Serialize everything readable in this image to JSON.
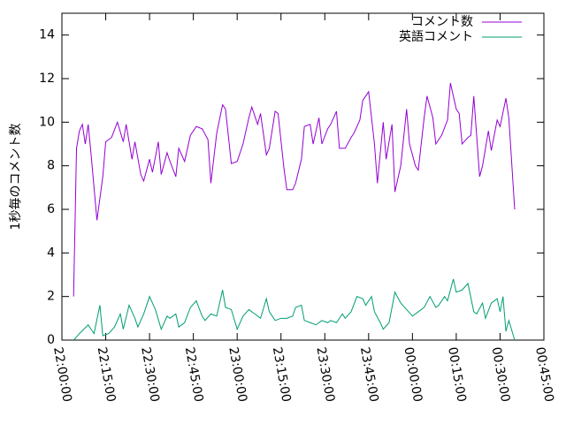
{
  "chart_data": {
    "type": "line",
    "ylabel": "1秒毎のコメント数",
    "xlim": [
      0,
      165
    ],
    "ylim": [
      0,
      15
    ],
    "yticks": [
      0,
      2,
      4,
      6,
      8,
      10,
      12,
      14
    ],
    "xticks": [
      {
        "value": 0,
        "label": "22:00:00"
      },
      {
        "value": 15,
        "label": "22:15:00"
      },
      {
        "value": 30,
        "label": "22:30:00"
      },
      {
        "value": 45,
        "label": "22:45:00"
      },
      {
        "value": 60,
        "label": "23:00:00"
      },
      {
        "value": 75,
        "label": "23:15:00"
      },
      {
        "value": 90,
        "label": "23:30:00"
      },
      {
        "value": 105,
        "label": "23:45:00"
      },
      {
        "value": 120,
        "label": "00:00:00"
      },
      {
        "value": 135,
        "label": "00:15:00"
      },
      {
        "value": 150,
        "label": "00:30:00"
      },
      {
        "value": 165,
        "label": "00:45:00"
      }
    ],
    "legend": "upper right",
    "series": [
      {
        "name": "コメント数",
        "color": "#9400d3",
        "x": [
          4,
          5,
          6,
          7,
          8,
          9,
          10,
          12,
          14,
          15,
          17,
          19,
          21,
          22,
          24,
          25,
          27,
          28,
          30,
          31,
          33,
          34,
          36,
          37,
          39,
          40,
          42,
          44,
          46,
          48,
          50,
          51,
          53,
          55,
          56,
          58,
          60,
          62,
          64,
          65,
          67,
          68,
          70,
          71,
          73,
          74,
          76,
          77,
          79,
          80,
          82,
          83,
          85,
          86,
          88,
          89,
          91,
          92,
          94,
          95,
          97,
          99,
          100,
          102,
          103,
          105,
          107,
          108,
          110,
          111,
          113,
          114,
          116,
          118,
          119,
          121,
          122,
          124,
          125,
          127,
          128,
          130,
          132,
          133,
          135,
          136,
          137,
          139,
          140,
          141,
          143,
          144,
          146,
          147,
          149,
          150,
          152,
          153,
          155
        ],
        "values": [
          2,
          8.8,
          9.6,
          9.9,
          9.0,
          9.9,
          8.5,
          5.5,
          7.5,
          9.1,
          9.3,
          10.0,
          9.1,
          9.9,
          8.3,
          9.1,
          7.6,
          7.3,
          8.3,
          7.7,
          9.1,
          7.6,
          8.6,
          8.2,
          7.5,
          8.8,
          8.2,
          9.4,
          9.8,
          9.7,
          9.2,
          7.2,
          9.5,
          10.8,
          10.6,
          8.1,
          8.2,
          9.0,
          10.2,
          10.7,
          9.9,
          10.4,
          8.5,
          8.8,
          10.5,
          10.4,
          7.9,
          6.9,
          6.9,
          7.2,
          8.3,
          9.8,
          9.9,
          9.0,
          10.2,
          9.0,
          9.7,
          9.9,
          10.5,
          8.8,
          8.8,
          9.3,
          9.5,
          10.1,
          11.0,
          11.4,
          9.0,
          7.2,
          10.0,
          8.3,
          9.9,
          6.8,
          8.0,
          10.6,
          9.0,
          8.0,
          7.8,
          10.2,
          11.2,
          10.2,
          9.0,
          9.4,
          10.1,
          11.8,
          10.6,
          10.4,
          9.0,
          9.3,
          9.4,
          11.2,
          7.5,
          8.0,
          9.6,
          8.7,
          10.1,
          9.8,
          11.1,
          10.2,
          6.0
        ]
      },
      {
        "name": "英語コメント",
        "color": "#009e73",
        "x": [
          4,
          6,
          9,
          11,
          13,
          14,
          16,
          18,
          20,
          21,
          23,
          25,
          26,
          28,
          30,
          32,
          34,
          36,
          37,
          39,
          40,
          42,
          44,
          46,
          48,
          49,
          51,
          53,
          55,
          56,
          58,
          60,
          62,
          64,
          66,
          68,
          70,
          71,
          73,
          75,
          77,
          79,
          80,
          82,
          83,
          85,
          87,
          89,
          91,
          92,
          94,
          96,
          97,
          99,
          101,
          103,
          104,
          106,
          107,
          109,
          110,
          112,
          114,
          116,
          118,
          120,
          122,
          124,
          126,
          128,
          129,
          131,
          132,
          134,
          135,
          137,
          139,
          141,
          142,
          144,
          145,
          147,
          149,
          150,
          151,
          152,
          153,
          155
        ],
        "values": [
          0,
          0.3,
          0.7,
          0.3,
          1.6,
          0.2,
          0.3,
          0.6,
          1.2,
          0.5,
          1.6,
          1.0,
          0.6,
          1.2,
          2.0,
          1.4,
          0.5,
          1.1,
          1.0,
          1.2,
          0.6,
          0.8,
          1.5,
          1.8,
          1.1,
          0.9,
          1.2,
          1.1,
          2.3,
          1.5,
          1.4,
          0.5,
          1.1,
          1.4,
          1.2,
          1.0,
          1.9,
          1.3,
          0.9,
          1.0,
          1.0,
          1.1,
          1.5,
          1.6,
          0.9,
          0.8,
          0.7,
          0.9,
          0.8,
          0.9,
          0.8,
          1.2,
          1.0,
          1.3,
          2.0,
          1.9,
          1.6,
          2.0,
          1.3,
          0.8,
          0.5,
          0.8,
          2.2,
          1.7,
          1.4,
          1.1,
          1.3,
          1.5,
          2.0,
          1.5,
          1.6,
          2.0,
          1.8,
          2.8,
          2.2,
          2.3,
          2.6,
          1.3,
          1.2,
          1.7,
          1.0,
          1.7,
          1.9,
          1.3,
          2.0,
          0.4,
          0.9,
          0
        ]
      }
    ]
  }
}
